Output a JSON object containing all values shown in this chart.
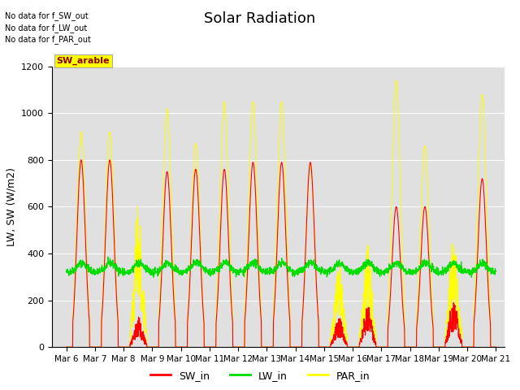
{
  "title": "Solar Radiation",
  "ylabel": "LW, SW (W/m2)",
  "ylim": [
    0,
    1200
  ],
  "yticks": [
    0,
    200,
    400,
    600,
    800,
    1000,
    1200
  ],
  "xtick_labels": [
    "Mar 6",
    "Mar 7",
    "Mar 8",
    "Mar 9",
    "Mar 10",
    "Mar 11",
    "Mar 12",
    "Mar 13",
    "Mar 14",
    "Mar 15",
    "Mar 16",
    "Mar 17",
    "Mar 18",
    "Mar 19",
    "Mar 20",
    "Mar 21"
  ],
  "xtick_positions": [
    6,
    7,
    8,
    9,
    10,
    11,
    12,
    13,
    14,
    15,
    16,
    17,
    18,
    19,
    20,
    21
  ],
  "xlim": [
    5.5,
    21.3
  ],
  "no_data_text": [
    "No data for f_SW_out",
    "No data for f_LW_out",
    "No data for f_PAR_out"
  ],
  "sw_arable_label": "SW_arable",
  "legend_labels": [
    "SW_in",
    "LW_in",
    "PAR_in"
  ],
  "sw_color": "#ff0000",
  "lw_color": "#00dd00",
  "par_color": "#ffff00",
  "bg_color": "#e0e0e0",
  "title_fontsize": 13,
  "tick_fontsize": 7.5,
  "ylabel_fontsize": 9
}
